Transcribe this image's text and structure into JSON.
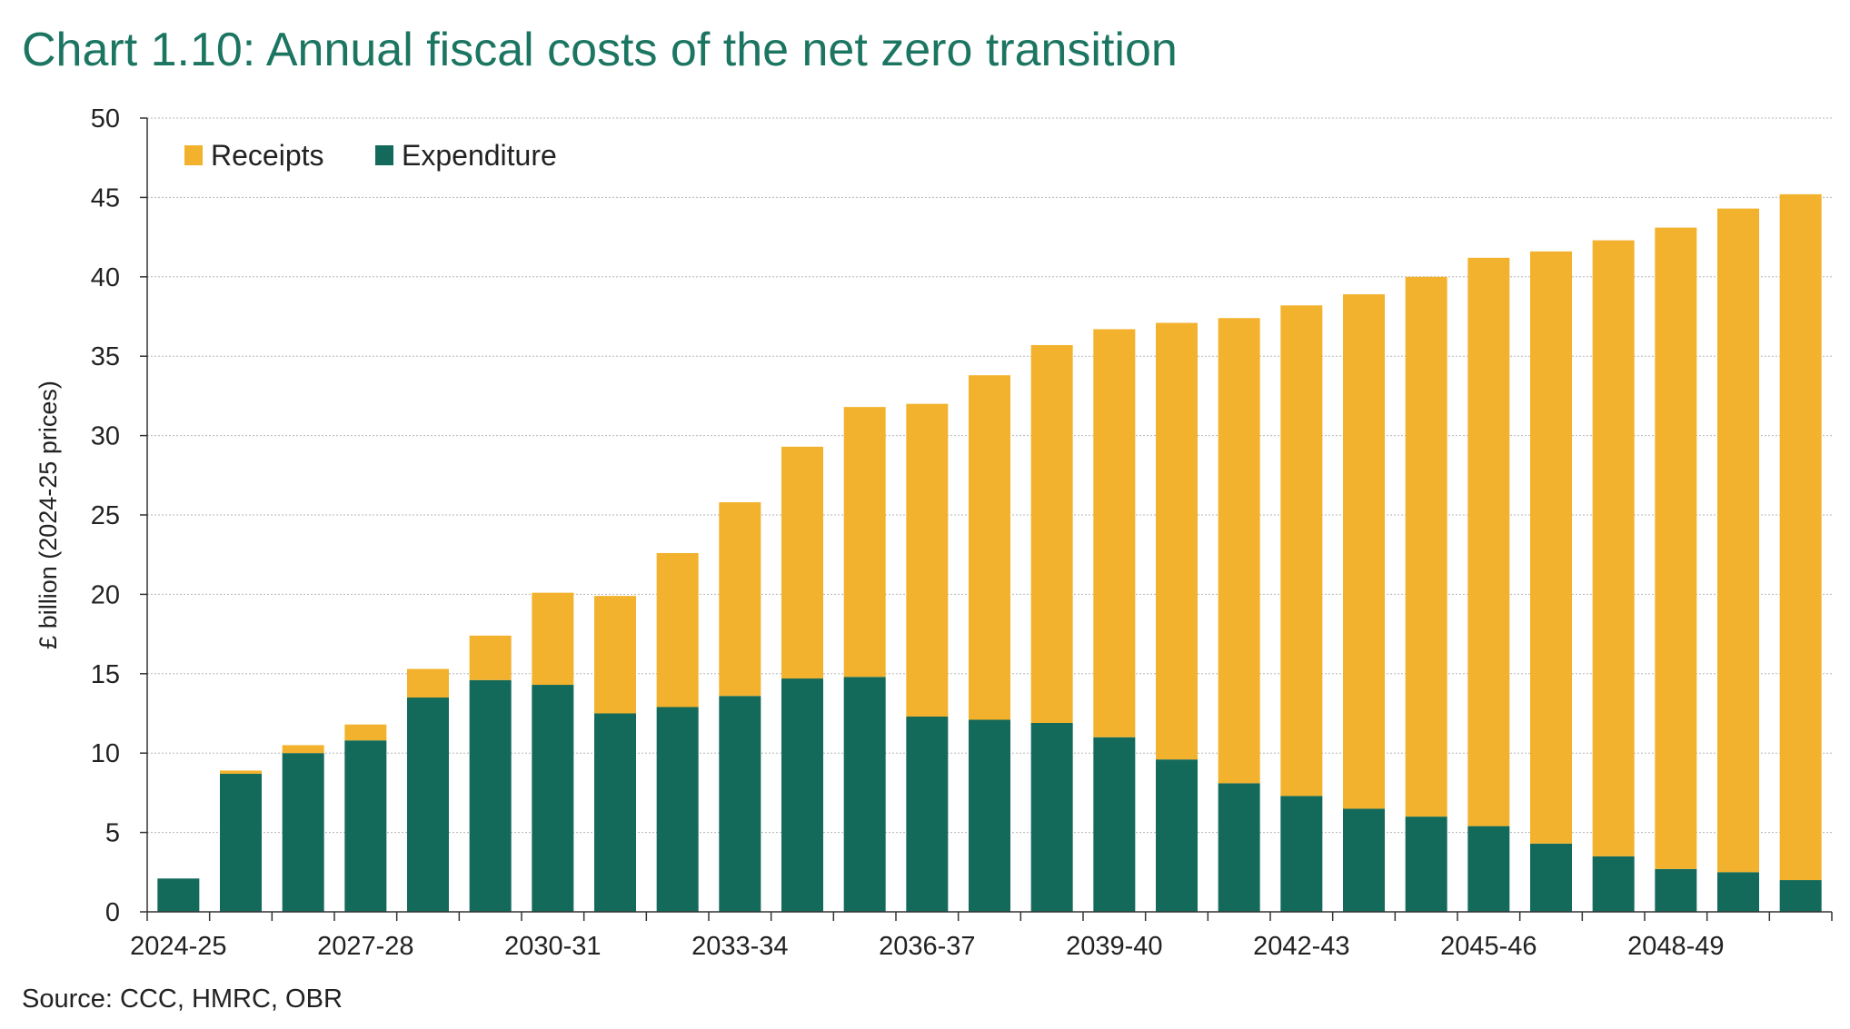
{
  "colors": {
    "title": "#1b7561",
    "receipts": "#f3b22d",
    "expenditure": "#136a5b",
    "grid": "#b5b5b5",
    "axis": "#333333"
  },
  "chart_data": {
    "type": "bar",
    "stacked": true,
    "title": "Chart 1.10: Annual fiscal costs of the net zero transition",
    "ylabel": "£ billion (2024-25 prices)",
    "xlabel": "",
    "ylim": [
      0,
      50
    ],
    "yticks": [
      0,
      5,
      10,
      15,
      20,
      25,
      30,
      35,
      40,
      45,
      50
    ],
    "grid": true,
    "legend_position": "top-left",
    "categories": [
      "2024-25",
      "2025-26",
      "2026-27",
      "2027-28",
      "2028-29",
      "2029-30",
      "2030-31",
      "2031-32",
      "2032-33",
      "2033-34",
      "2034-35",
      "2035-36",
      "2036-37",
      "2037-38",
      "2038-39",
      "2039-40",
      "2040-41",
      "2041-42",
      "2042-43",
      "2043-44",
      "2044-45",
      "2045-46",
      "2046-47",
      "2047-48",
      "2048-49",
      "2049-50",
      "2050-51"
    ],
    "xtick_labels": [
      "2024-25",
      "2027-28",
      "2030-31",
      "2033-34",
      "2036-37",
      "2039-40",
      "2042-43",
      "2045-46",
      "2048-49"
    ],
    "series": [
      {
        "name": "Expenditure",
        "values": [
          2.1,
          8.7,
          10.0,
          10.8,
          13.5,
          14.6,
          14.3,
          12.5,
          12.9,
          13.6,
          14.7,
          14.8,
          12.3,
          12.1,
          11.9,
          11.0,
          9.6,
          8.1,
          7.3,
          6.5,
          6.0,
          5.4,
          4.3,
          3.5,
          2.7,
          2.5,
          2.0
        ]
      },
      {
        "name": "Receipts",
        "values": [
          0.0,
          0.2,
          0.5,
          1.0,
          1.8,
          2.8,
          5.8,
          7.4,
          9.7,
          12.2,
          14.6,
          17.0,
          19.7,
          21.7,
          23.8,
          25.7,
          27.5,
          29.3,
          30.9,
          32.4,
          34.0,
          35.8,
          37.3,
          38.8,
          40.4,
          41.8,
          43.2
        ]
      }
    ],
    "legend": [
      "Receipts",
      "Expenditure"
    ],
    "source": "Source: CCC, HMRC, OBR"
  }
}
